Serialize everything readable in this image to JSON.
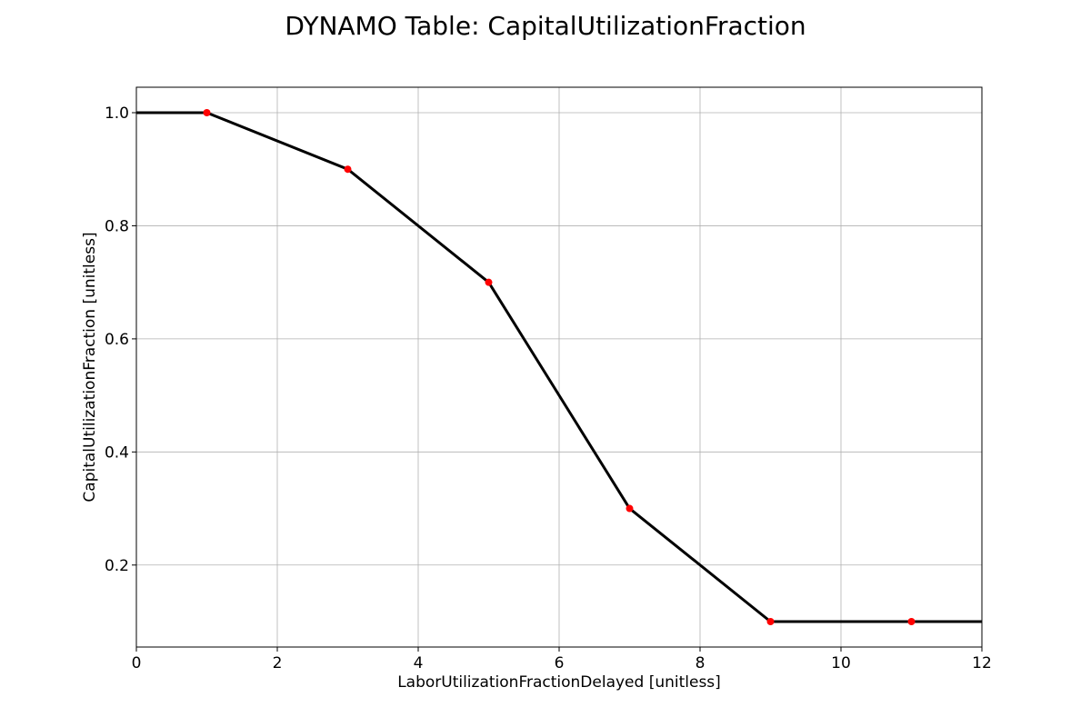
{
  "chart_data": {
    "type": "line",
    "title": "DYNAMO Table: CapitalUtilizationFraction",
    "xlabel": "LaborUtilizationFractionDelayed [unitless]",
    "ylabel": "CapitalUtilizationFraction [unitless]",
    "xlim": [
      0,
      12
    ],
    "ylim": [
      0.055,
      1.045
    ],
    "xticks": [
      0,
      2,
      4,
      6,
      8,
      10,
      12
    ],
    "xtick_labels": [
      "0",
      "2",
      "4",
      "6",
      "8",
      "10",
      "12"
    ],
    "yticks": [
      0.2,
      0.4,
      0.6,
      0.8,
      1.0
    ],
    "ytick_labels": [
      "0.2",
      "0.4",
      "0.6",
      "0.8",
      "1.0"
    ],
    "grid": true,
    "line_color": "#000000",
    "marker_color": "#ff0000",
    "line_x": [
      0,
      1,
      3,
      5,
      7,
      9,
      11,
      12
    ],
    "line_y": [
      1.0,
      1.0,
      0.9,
      0.7,
      0.3,
      0.1,
      0.1,
      0.1
    ],
    "points_x": [
      1,
      3,
      5,
      7,
      9,
      11
    ],
    "points_y": [
      1.0,
      0.9,
      0.7,
      0.3,
      0.1,
      0.1
    ]
  }
}
